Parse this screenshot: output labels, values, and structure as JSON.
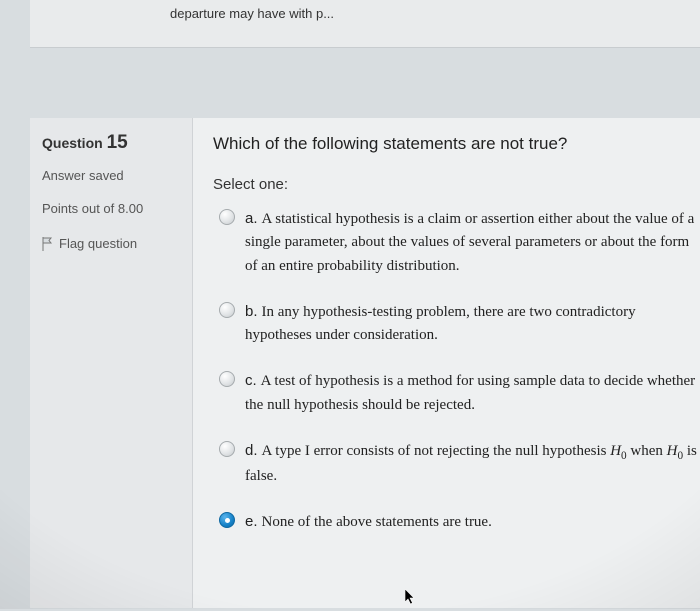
{
  "top_fragment": "departure may have with p...",
  "sidebar": {
    "question_label": "Question",
    "question_number": "15",
    "status": "Answer saved",
    "points": "Points out of 8.00",
    "flag_label": "Flag question"
  },
  "question": {
    "stem": "Which of the following statements are not true?",
    "select_label": "Select one:",
    "options": [
      {
        "letter": "a.",
        "text": "A statistical hypothesis is a claim or assertion either about the value of a single parameter, about the values of several parameters or about the form of an entire probability distribution.",
        "selected": false
      },
      {
        "letter": "b.",
        "text": "In any hypothesis-testing problem, there are two contradictory hypotheses under consideration.",
        "selected": false
      },
      {
        "letter": "c.",
        "text": "A test of hypothesis is a method for using sample data to decide whether the null hypothesis should be rejected.",
        "selected": false
      },
      {
        "letter": "d.",
        "text_html": "A type I error consists of not rejecting the null hypothesis <i>H</i><span class=\"sub\">0</span> when <i>H</i><span class=\"sub\">0</span> is false.",
        "selected": false
      },
      {
        "letter": "e.",
        "text": "None of the above statements are true.",
        "selected": true
      }
    ]
  },
  "colors": {
    "page_bg": "#d8dde0",
    "panel_bg": "#eef0f1",
    "sidebar_bg": "#e6e8ea",
    "radio_selected": "#1682c8"
  }
}
